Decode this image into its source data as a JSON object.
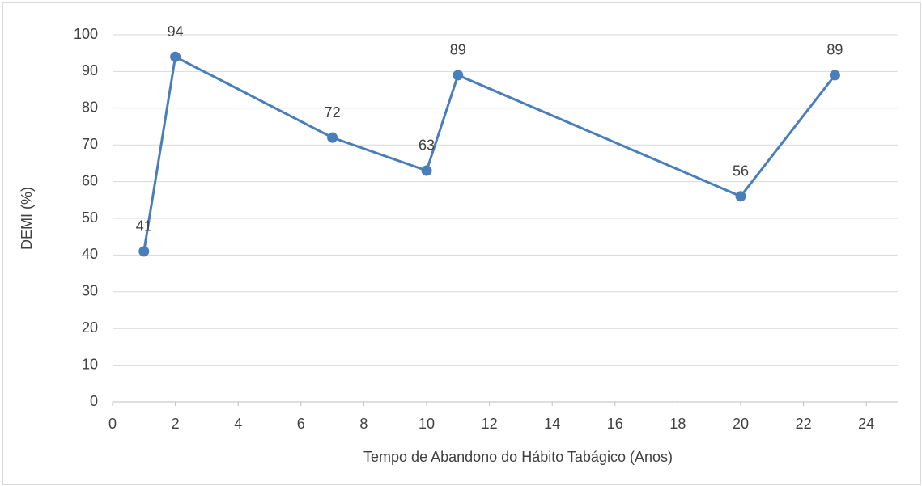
{
  "chart_data": {
    "type": "line",
    "x_label": "Tempo de Abandono do Hábito Tabágico (Anos)",
    "y_label": "DEMI (%)",
    "x": [
      1,
      2,
      7,
      10,
      11,
      20,
      23
    ],
    "series": [
      {
        "name": "DEMI",
        "color": "#4a7ebb",
        "values": [
          41,
          94,
          72,
          63,
          89,
          56,
          89
        ]
      }
    ],
    "xlim": [
      0,
      25
    ],
    "xticks": [
      0,
      2,
      4,
      6,
      8,
      10,
      12,
      14,
      16,
      18,
      20,
      22,
      24
    ],
    "ylim": [
      0,
      100
    ],
    "yticks": [
      0,
      10,
      20,
      30,
      40,
      50,
      60,
      70,
      80,
      90,
      100
    ],
    "grid": true,
    "data_labels": true
  }
}
